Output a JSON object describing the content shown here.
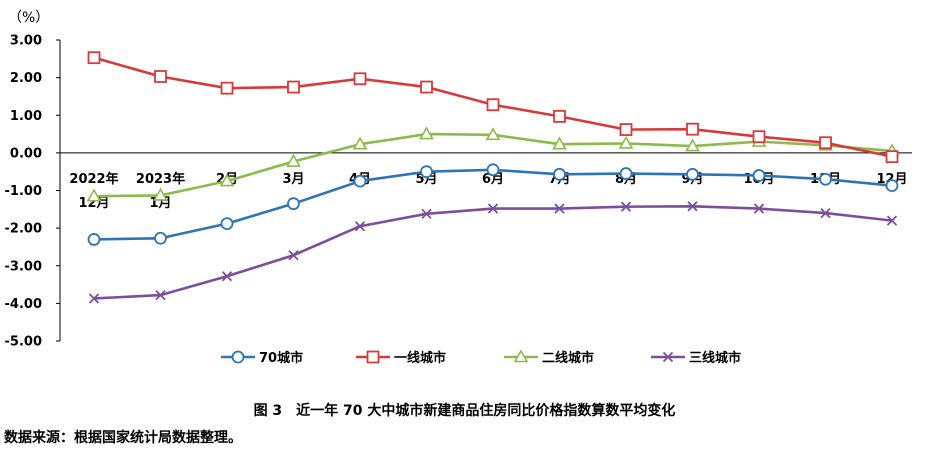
{
  "chart_data": {
    "type": "line",
    "unit_label": "（%）",
    "ylim": [
      -5,
      3
    ],
    "yticks": [
      "3.00",
      "2.00",
      "1.00",
      "0.00",
      "-1.00",
      "-2.00",
      "-3.00",
      "-4.00",
      "-5.00"
    ],
    "categories": [
      [
        "2022年",
        "12月"
      ],
      [
        "2023年",
        "1月"
      ],
      [
        "2月"
      ],
      [
        "3月"
      ],
      [
        "4月"
      ],
      [
        "5月"
      ],
      [
        "6月"
      ],
      [
        "7月"
      ],
      [
        "8月"
      ],
      [
        "9月"
      ],
      [
        "10月"
      ],
      [
        "11月"
      ],
      [
        "12月"
      ]
    ],
    "series": [
      {
        "name": "70城市",
        "color": "#2E75B6",
        "marker": "circle",
        "values": [
          -2.3,
          -2.27,
          -1.88,
          -1.35,
          -0.75,
          -0.5,
          -0.45,
          -0.57,
          -0.55,
          -0.57,
          -0.6,
          -0.7,
          -0.87
        ]
      },
      {
        "name": "一线城市",
        "color": "#D63B3B",
        "marker": "square",
        "values": [
          2.53,
          2.03,
          1.72,
          1.75,
          1.97,
          1.75,
          1.28,
          0.97,
          0.62,
          0.63,
          0.43,
          0.27,
          -0.1
        ]
      },
      {
        "name": "二线城市",
        "color": "#8DBB4A",
        "marker": "triangle",
        "values": [
          -1.15,
          -1.13,
          -0.75,
          -0.23,
          0.23,
          0.5,
          0.48,
          0.23,
          0.25,
          0.18,
          0.3,
          0.2,
          0.05
        ]
      },
      {
        "name": "三线城市",
        "color": "#7B4F9E",
        "marker": "cross",
        "values": [
          -3.87,
          -3.78,
          -3.28,
          -2.72,
          -1.95,
          -1.62,
          -1.48,
          -1.48,
          -1.43,
          -1.42,
          -1.48,
          -1.6,
          -1.8
        ]
      }
    ]
  },
  "caption": "图 3　近一年 70 大中城市新建商品住房同比价格指数算数平均变化",
  "source": "数据来源：根据国家统计局数据整理。"
}
